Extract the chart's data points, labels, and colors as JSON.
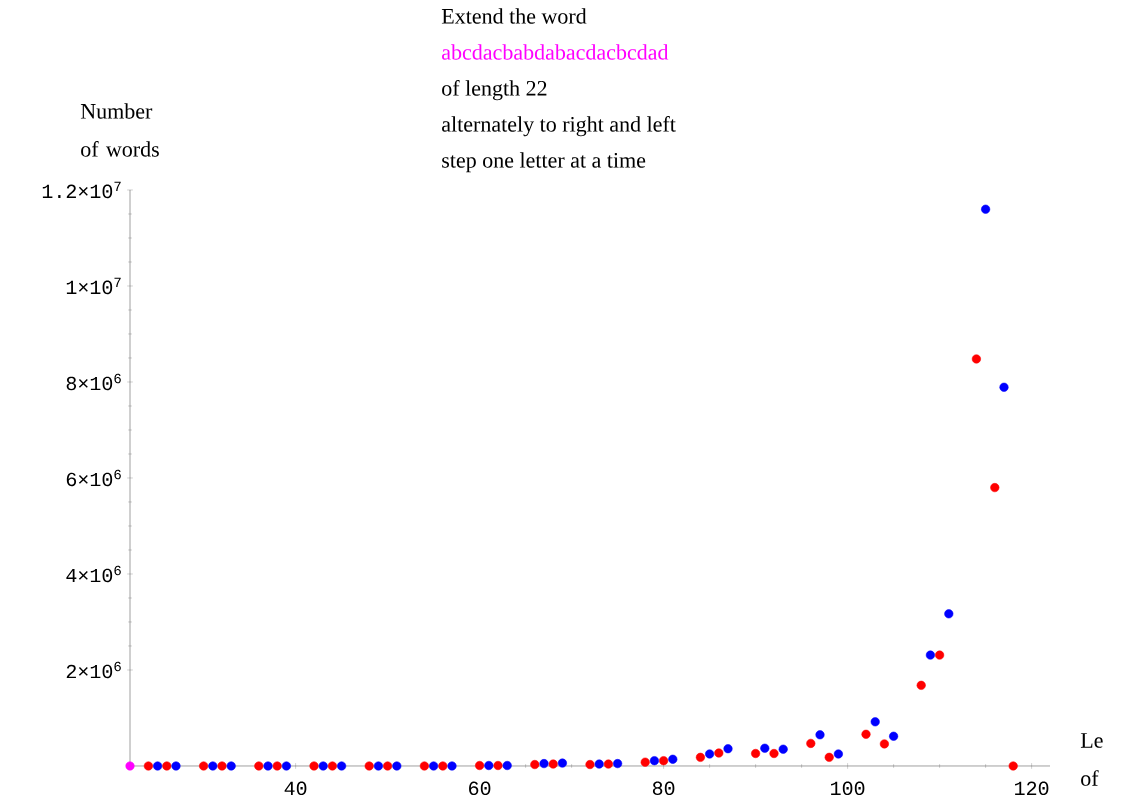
{
  "chart_data": {
    "type": "scatter",
    "title": "Extend the word",
    "subtitle": "abcdacbabdabacdacbcdad",
    "annotations": [
      "of length 22",
      "alternately to right and left",
      "step one letter at a time"
    ],
    "xlabel": "Le of",
    "ylabel": "Number of words",
    "marker": "circle",
    "xlim": [
      22,
      122
    ],
    "ylim": [
      0,
      12000000
    ],
    "xticks": [
      40,
      60,
      80,
      100,
      120
    ],
    "yticks": [
      {
        "value": 2000000,
        "label": "2×10$^{6}$"
      },
      {
        "value": 4000000,
        "label": "4×10$^{6}$"
      },
      {
        "value": 6000000,
        "label": "6×10$^{6}$"
      },
      {
        "value": 8000000,
        "label": "8×10$^{6}$"
      },
      {
        "value": 10000000,
        "label": "1×10$^{7}$"
      },
      {
        "value": 12000000,
        "label": "1.2×10$^{7}$"
      }
    ],
    "series": [
      {
        "color": "#ff00ff",
        "x": [
          22
        ],
        "values": [
          0
        ]
      },
      {
        "color": "#ff0000",
        "x": [
          24,
          26,
          30,
          32,
          36,
          38,
          42,
          44,
          48,
          50,
          54,
          56,
          60,
          62,
          66,
          68,
          72,
          74,
          78,
          80,
          84,
          86,
          90,
          92,
          96,
          98,
          102,
          104,
          108,
          110,
          114,
          116,
          118
        ],
        "values": [
          0,
          0,
          0,
          0,
          0,
          0,
          0,
          0,
          0,
          0,
          0,
          0,
          10000,
          10000,
          30000,
          40000,
          30000,
          40000,
          80000,
          110000,
          180000,
          270000,
          260000,
          260000,
          470000,
          180000,
          660000,
          460000,
          1680000,
          2310000,
          8480000,
          5800000,
          0
        ]
      },
      {
        "color": "#0000ff",
        "x": [
          25,
          27,
          31,
          33,
          37,
          39,
          43,
          45,
          49,
          51,
          55,
          57,
          61,
          63,
          67,
          69,
          73,
          75,
          79,
          81,
          85,
          87,
          91,
          93,
          97,
          99,
          103,
          105,
          109,
          111,
          115,
          117
        ],
        "values": [
          0,
          0,
          0,
          0,
          0,
          0,
          0,
          0,
          0,
          0,
          0,
          0,
          10000,
          10000,
          50000,
          60000,
          40000,
          50000,
          110000,
          140000,
          250000,
          360000,
          370000,
          350000,
          650000,
          250000,
          920000,
          620000,
          2310000,
          3170000,
          11600000,
          7890000
        ]
      }
    ]
  }
}
